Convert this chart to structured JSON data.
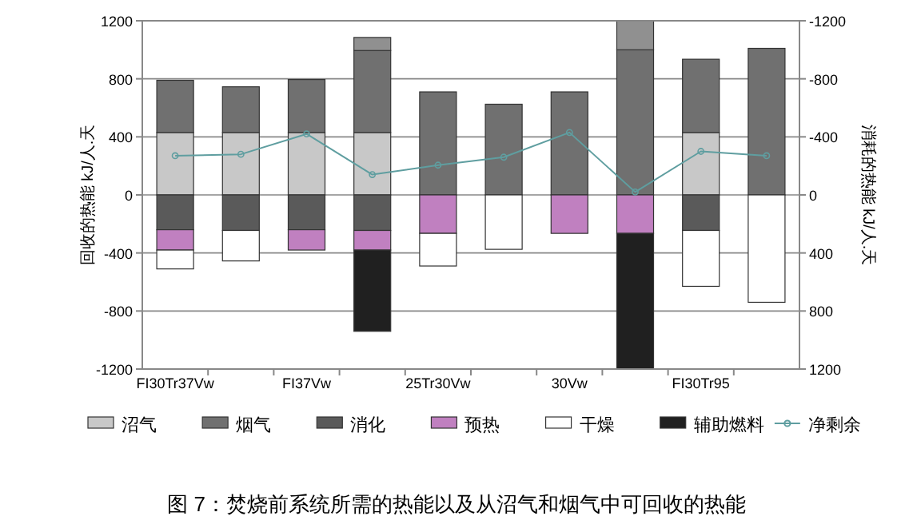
{
  "chart_data": {
    "type": "bar",
    "stacked": true,
    "title": "图 7：焚烧前系统所需的热能以及从沼气和烟气中可回收的热能",
    "ylabel": "回收的热能 kJ/人.天",
    "y2label": "消耗的热能 kJ/人.天",
    "categories": [
      "FI30Tr37Vw",
      null,
      "FI37Vw",
      null,
      "25Tr30Vw",
      null,
      "30Vw",
      null,
      "FI30Tr95",
      null
    ],
    "ylim": [
      -1200,
      1200
    ],
    "yticks": [
      -1200,
      -800,
      -400,
      0,
      400,
      800,
      1200
    ],
    "y2lim": [
      1200,
      -1200
    ],
    "y2ticks": [
      -1200,
      -800,
      -400,
      0,
      400,
      800,
      1200
    ],
    "grid": "y",
    "legend": "bottom",
    "series": [
      {
        "name": "沼气",
        "color": "#c8c8c8",
        "values": [
          430,
          430,
          430,
          430,
          null,
          null,
          null,
          null,
          430,
          null
        ]
      },
      {
        "name": "烟气",
        "color": "#707070",
        "values": [
          360,
          315,
          365,
          565,
          710,
          625,
          710,
          1000,
          505,
          1010
        ]
      },
      {
        "color": "#909090",
        "values": [
          null,
          null,
          null,
          90,
          null,
          null,
          null,
          200,
          null,
          null
        ]
      },
      {
        "name": "消化",
        "color": "#5a5a5a",
        "values": [
          -240,
          -245,
          -240,
          -245,
          null,
          null,
          null,
          null,
          -245,
          null
        ]
      },
      {
        "name": "预热",
        "color": "#c080c0",
        "values": [
          -140,
          null,
          -140,
          -135,
          -265,
          null,
          -265,
          -265,
          null,
          null
        ]
      },
      {
        "name": "干燥",
        "color": "#ffffff",
        "values": [
          -130,
          -210,
          null,
          null,
          -225,
          -375,
          null,
          null,
          -385,
          -740
        ]
      },
      {
        "name": "辅助燃料",
        "color": "#202020",
        "values": [
          null,
          null,
          null,
          -560,
          null,
          null,
          null,
          -935,
          null,
          null
        ]
      },
      {
        "name": "净剩余",
        "type": "line",
        "axis": "y2",
        "color": "#5f9ea0",
        "marker": "circle",
        "values": [
          -270,
          -280,
          -420,
          -140,
          -205,
          -260,
          -430,
          -20,
          -300,
          -270
        ]
      }
    ]
  }
}
